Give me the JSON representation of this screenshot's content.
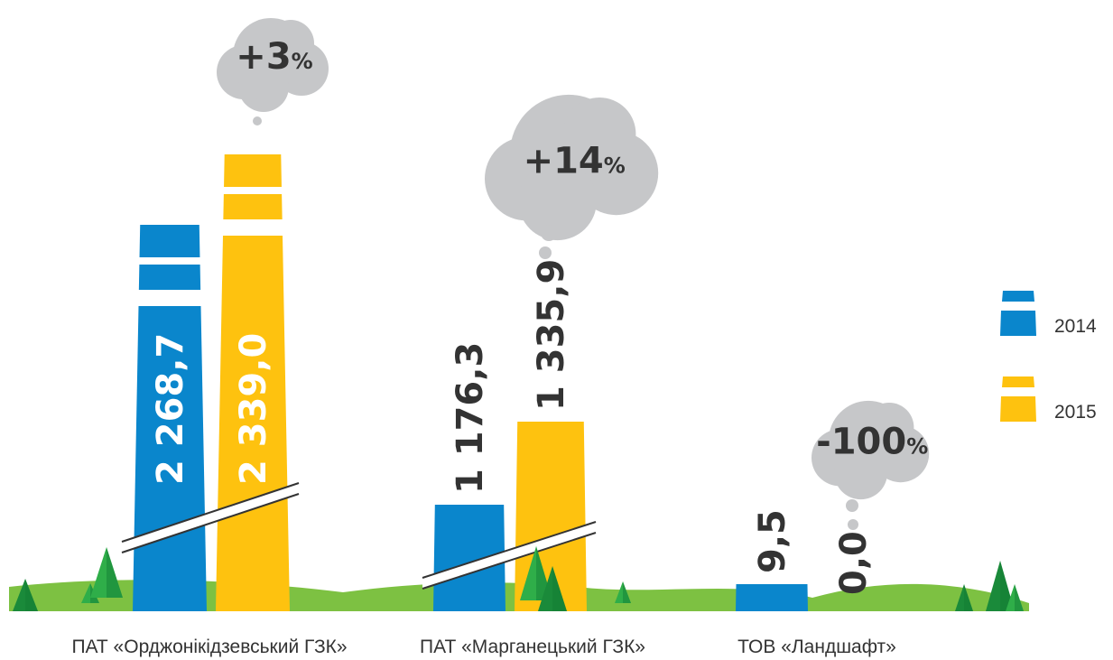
{
  "chart_data": {
    "type": "bar",
    "categories": [
      "ПАТ «Орджонікідзевський ГЗК»",
      "ПАТ «Марганецький ГЗК»",
      "ТОВ «Ландшафт»"
    ],
    "series": [
      {
        "name": "2014",
        "color": "#0a86cc",
        "values": [
          2268.7,
          1176.3,
          9.5
        ],
        "labels": [
          "2 268,7",
          "1 176,3",
          "9,5"
        ]
      },
      {
        "name": "2015",
        "color": "#fec20f",
        "values": [
          2339.0,
          1335.9,
          0.0
        ],
        "labels": [
          "2 339,0",
          "1 335,9",
          "0,0"
        ]
      }
    ],
    "changes": [
      {
        "value": "+3",
        "unit": "%"
      },
      {
        "value": "+14",
        "unit": "%"
      },
      {
        "value": "-100",
        "unit": "%"
      }
    ],
    "legend": {
      "position": "right"
    },
    "axis_break": true,
    "colors": {
      "cloud": "#c6c7c9",
      "ground": "#7dc142",
      "tree_dark": "#1a8a3a",
      "tree_light": "#2fae49"
    }
  }
}
